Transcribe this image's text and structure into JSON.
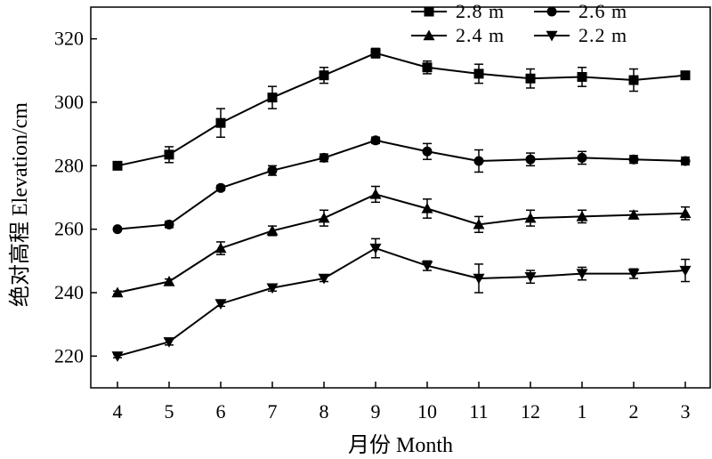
{
  "chart_data": {
    "type": "line",
    "title": "",
    "xlabel": "月份 Month",
    "ylabel": "绝对高程 Elevation/cm",
    "categories": [
      "4",
      "5",
      "6",
      "7",
      "8",
      "9",
      "10",
      "11",
      "12",
      "1",
      "2",
      "3"
    ],
    "ylim": [
      210,
      330
    ],
    "yticks": [
      220,
      240,
      260,
      280,
      300,
      320
    ],
    "grid": false,
    "legend_position": "top-right",
    "series": [
      {
        "name": "2.8 m",
        "marker": "square",
        "values": [
          280,
          283.5,
          293.5,
          301.5,
          308.5,
          315.5,
          311,
          309,
          307.5,
          308,
          307,
          308.5
        ],
        "errors": [
          0.8,
          2.5,
          4.5,
          3.5,
          2.5,
          1.5,
          2,
          3,
          3,
          3,
          3.5,
          1
        ]
      },
      {
        "name": "2.6 m",
        "marker": "circle",
        "values": [
          260,
          261.5,
          273,
          278.5,
          282.5,
          288,
          284.5,
          281.5,
          282,
          282.5,
          282,
          281.5
        ],
        "errors": [
          0.5,
          1,
          0.8,
          1.5,
          1.2,
          1,
          2.5,
          3.5,
          2,
          2,
          1.2,
          1.2
        ]
      },
      {
        "name": "2.4 m",
        "marker": "triangle-up",
        "values": [
          240,
          243.5,
          254,
          259.5,
          263.5,
          271,
          266.5,
          261.5,
          263.5,
          264,
          264.5,
          265
        ],
        "errors": [
          0.5,
          0.8,
          2,
          1.5,
          2.5,
          2.5,
          3,
          2.5,
          2.5,
          2,
          1.2,
          2
        ]
      },
      {
        "name": "2.2 m",
        "marker": "triangle-down",
        "values": [
          220,
          224.5,
          236.5,
          241.5,
          244.5,
          254,
          248.5,
          244.5,
          245,
          246,
          246,
          247
        ],
        "errors": [
          0.5,
          1,
          0.8,
          1,
          1,
          3,
          1.5,
          4.5,
          2,
          2,
          1.5,
          3.5
        ]
      }
    ]
  }
}
